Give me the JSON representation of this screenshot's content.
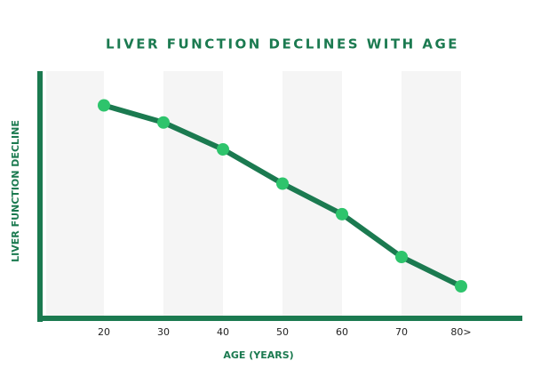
{
  "chart_data": {
    "type": "line",
    "title": "LIVER FUNCTION DECLINES WITH AGE",
    "x_label": "AGE (YEARS)",
    "y_label": "LIVER FUNCTION DECLINE",
    "categories": [
      "20",
      "30",
      "40",
      "50",
      "60",
      "70",
      "80>"
    ],
    "series": [
      {
        "name": "Liver function",
        "color": "#1b7a50",
        "marker_color": "#2ec46c",
        "values": [
          86,
          79,
          68,
          54,
          41.5,
          24,
          12
        ]
      }
    ],
    "ylim": [
      0,
      100
    ]
  }
}
